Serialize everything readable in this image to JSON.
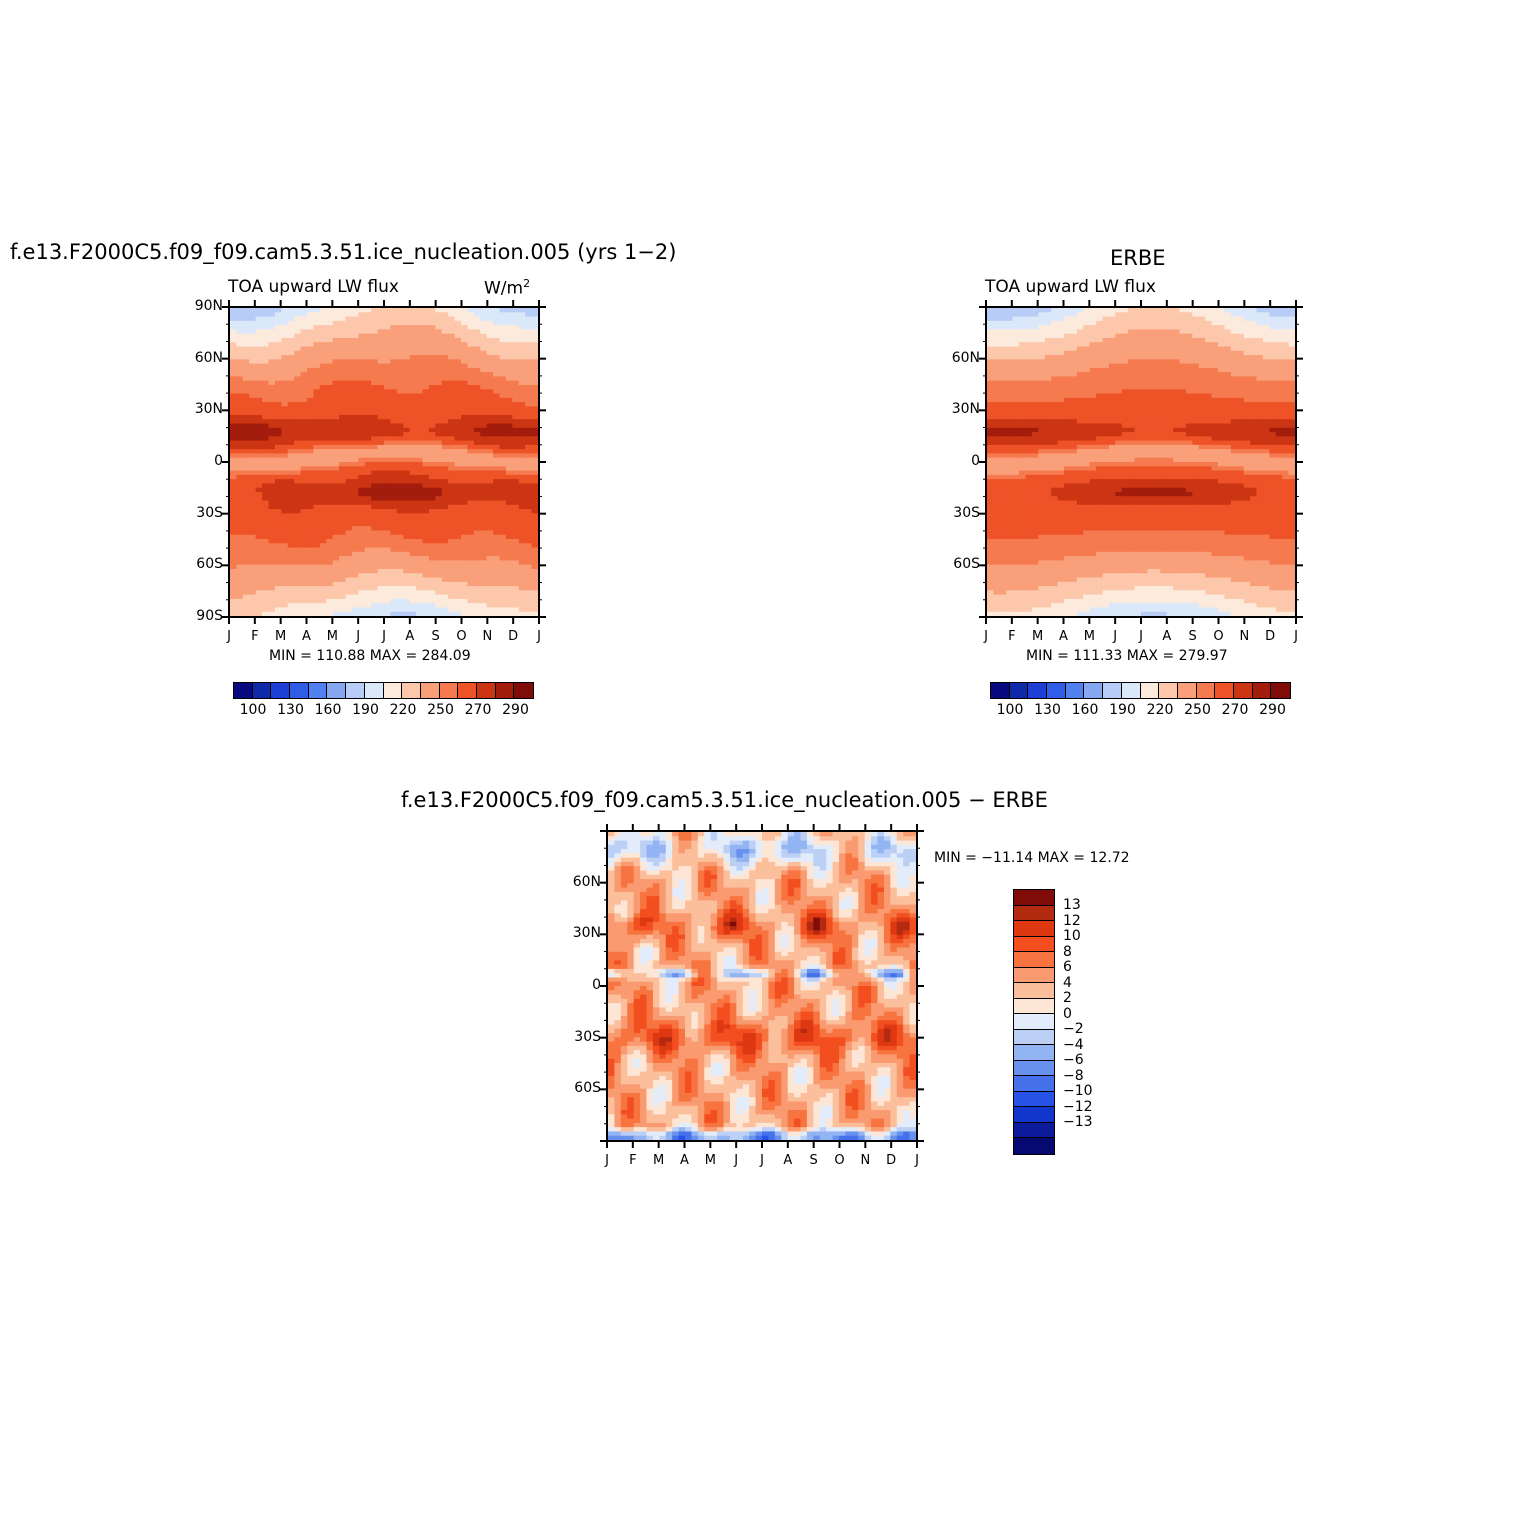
{
  "panel1": {
    "title": "f.e13.F2000C5.f09_f09.cam5.3.51.ice_nucleation.005 (yrs 1−2)",
    "subtitle": "TOA upward LW flux",
    "units": "W/m",
    "units_sup": "2",
    "minmax": "MIN = 110.88 MAX = 284.09"
  },
  "panel2": {
    "title": "ERBE",
    "subtitle": "TOA upward LW flux",
    "minmax": "MIN = 111.33 MAX = 279.97"
  },
  "panel3": {
    "title": "f.e13.F2000C5.f09_f09.cam5.3.51.ice_nucleation.005 − ERBE",
    "minmax": "MIN = −11.14 MAX =  12.72"
  },
  "colors": {
    "abs_scale": [
      "#0a0a80",
      "#0f2aa8",
      "#1d3fd6",
      "#2f5de8",
      "#5181f0",
      "#86a8f2",
      "#b7ccf6",
      "#dbe8fa",
      "#fcebdd",
      "#fcc7ab",
      "#f9a07a",
      "#f57a4f",
      "#ee5327",
      "#cc3514",
      "#a41d0c",
      "#7f0c08"
    ],
    "diff_scale": [
      "#7f0c08",
      "#b22a10",
      "#dd3812",
      "#f24e1f",
      "#f77440",
      "#f99a70",
      "#fbbf9c",
      "#fde6d6",
      "#e2ecfa",
      "#bcd0f6",
      "#93b4f2",
      "#6891ee",
      "#4571ea",
      "#2752e6",
      "#1236cc",
      "#0b1b9a",
      "#060a70"
    ]
  },
  "chart_data": [
    {
      "type": "heatmap",
      "title": "f.e13.F2000C5.f09_f09.cam5.3.51.ice_nucleation.005 (yrs 1−2)",
      "subtitle": "TOA upward LW flux",
      "units": "W/m2",
      "x_tick_labels": [
        "J",
        "F",
        "M",
        "A",
        "M",
        "J",
        "J",
        "A",
        "S",
        "O",
        "N",
        "D",
        "J"
      ],
      "y_tick_labels": [
        "90N",
        "60N",
        "30N",
        "0",
        "30S",
        "60S",
        "90S"
      ],
      "y_tick_values": [
        90,
        60,
        30,
        0,
        -30,
        -60,
        -90
      ],
      "ylim": [
        -90,
        90
      ],
      "min": 110.88,
      "max": 284.09,
      "colorbar_labels": [
        "100",
        "130",
        "160",
        "190",
        "220",
        "250",
        "270",
        "290"
      ]
    },
    {
      "type": "heatmap",
      "title": "ERBE",
      "subtitle": "TOA upward LW flux",
      "x_tick_labels": [
        "J",
        "F",
        "M",
        "A",
        "M",
        "J",
        "J",
        "A",
        "S",
        "O",
        "N",
        "D",
        "J"
      ],
      "y_tick_labels": [
        "60N",
        "30N",
        "0",
        "30S",
        "60S"
      ],
      "y_tick_values": [
        60,
        30,
        0,
        -30,
        -60
      ],
      "ylim": [
        -90,
        90
      ],
      "min": 111.33,
      "max": 279.97,
      "colorbar_labels": [
        "100",
        "130",
        "160",
        "190",
        "220",
        "250",
        "270",
        "290"
      ]
    },
    {
      "type": "heatmap",
      "title": "f.e13.F2000C5.f09_f09.cam5.3.51.ice_nucleation.005 − ERBE",
      "x_tick_labels": [
        "J",
        "F",
        "M",
        "A",
        "M",
        "J",
        "J",
        "A",
        "S",
        "O",
        "N",
        "D",
        "J"
      ],
      "y_tick_labels": [
        "60N",
        "30N",
        "0",
        "30S",
        "60S"
      ],
      "y_tick_values": [
        60,
        30,
        0,
        -30,
        -60
      ],
      "ylim": [
        -90,
        90
      ],
      "min": -11.14,
      "max": 12.72,
      "colorbar_labels": [
        "13",
        "12",
        "10",
        "8",
        "6",
        "4",
        "2",
        "0",
        "−2",
        "−4",
        "−6",
        "−8",
        "−10",
        "−12",
        "−13"
      ]
    }
  ]
}
